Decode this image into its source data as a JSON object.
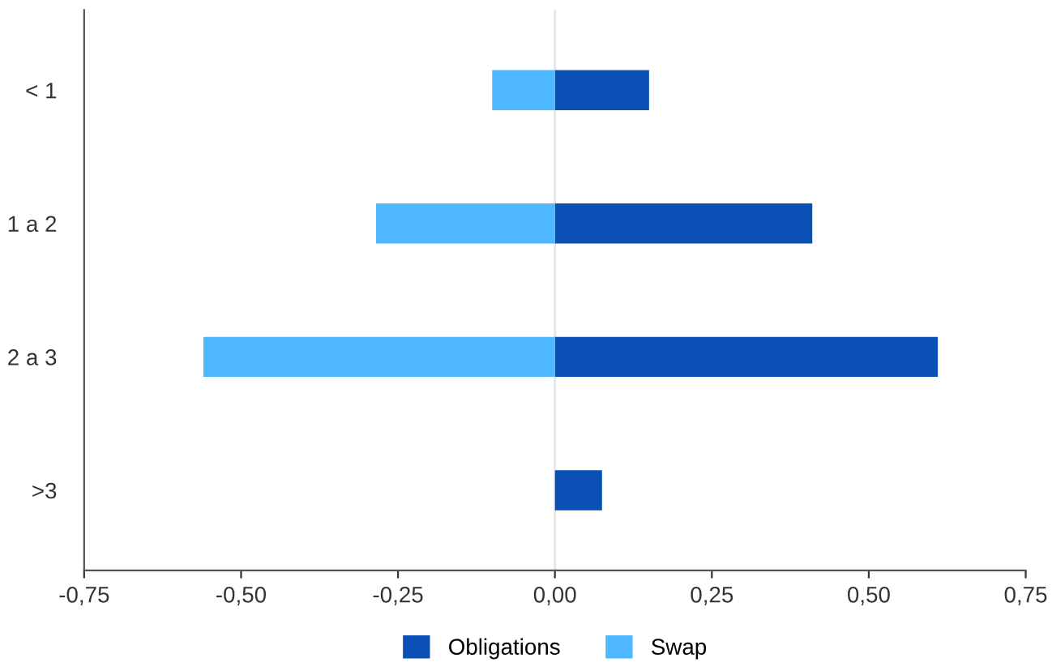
{
  "chart_data": {
    "type": "bar",
    "orientation": "horizontal",
    "stacked": true,
    "categories": [
      "< 1",
      "1 a 2",
      "2 a 3",
      ">3"
    ],
    "series": [
      {
        "name": "Obligations",
        "color": "#0a50b4",
        "values": [
          0.15,
          0.41,
          0.61,
          0.075
        ]
      },
      {
        "name": "Swap",
        "color": "#4db8ff",
        "values": [
          -0.1,
          -0.285,
          -0.56,
          null
        ]
      }
    ],
    "xlim": [
      -0.75,
      0.75
    ],
    "xticks": [
      {
        "value": -0.75,
        "label": "-0,75"
      },
      {
        "value": -0.5,
        "label": "-0,50"
      },
      {
        "value": -0.25,
        "label": "-0,25"
      },
      {
        "value": 0,
        "label": "0,00"
      },
      {
        "value": 0.25,
        "label": "0,25"
      },
      {
        "value": 0.5,
        "label": "0,50"
      },
      {
        "value": 0.75,
        "label": "0,75"
      }
    ],
    "ref_lines": [
      {
        "axis": "x",
        "value": 0,
        "label": null,
        "color": "#e6e6e6"
      }
    ],
    "grid": false,
    "legend": "bottom"
  }
}
